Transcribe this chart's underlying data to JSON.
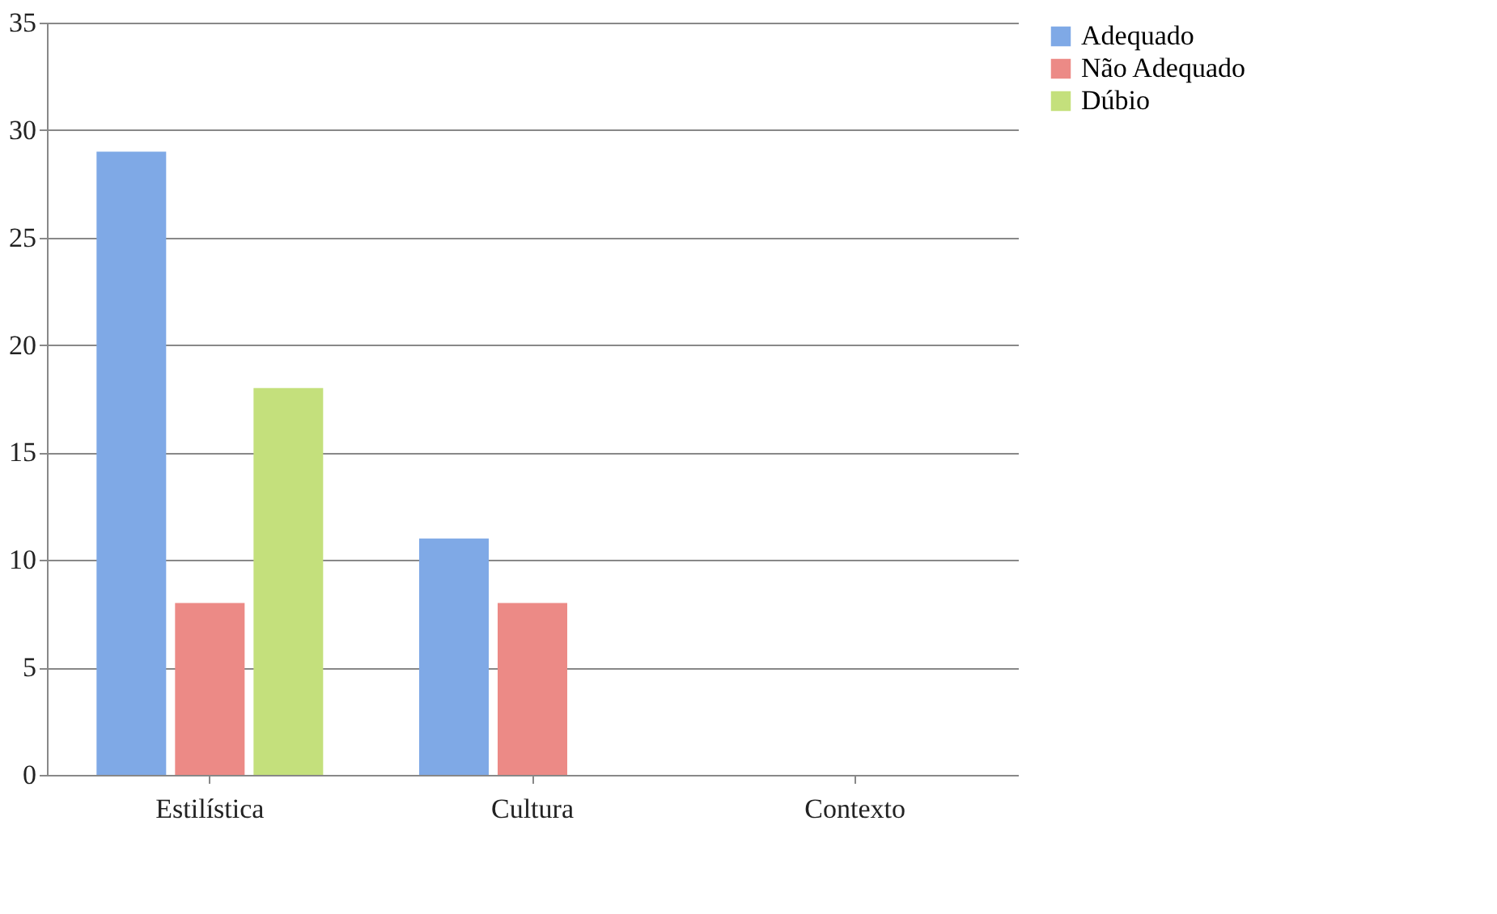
{
  "chart_data": {
    "type": "bar",
    "categories": [
      "Estilística",
      "Cultura",
      "Contexto"
    ],
    "series": [
      {
        "name": "Adequado",
        "color": "#7fa9e6",
        "values": [
          29,
          11,
          0
        ]
      },
      {
        "name": "Não Adequado",
        "color": "#ec8a86",
        "values": [
          8,
          8,
          0
        ]
      },
      {
        "name": "Dúbio",
        "color": "#c4e07c",
        "values": [
          18,
          0,
          0
        ]
      }
    ],
    "ylim": [
      0,
      35
    ],
    "yticks": [
      0,
      5,
      10,
      15,
      20,
      25,
      30,
      35
    ],
    "grid": "y",
    "legend": "right"
  }
}
